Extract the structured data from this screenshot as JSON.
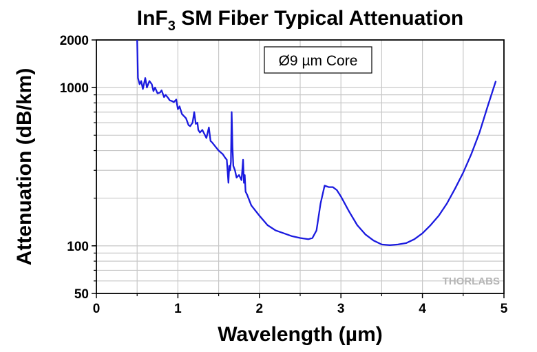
{
  "chart_data": {
    "type": "line",
    "title_main": "InF",
    "title_sub": "3",
    "title_rest": " SM Fiber Typical Attenuation",
    "xlabel": "Wavelength (µm)",
    "ylabel": "Attenuation (dB/km)",
    "xlim": [
      0,
      5
    ],
    "ylim": [
      50,
      2000
    ],
    "y_scale": "log",
    "x_ticks": [
      "0",
      "1",
      "2",
      "3",
      "4",
      "5"
    ],
    "y_ticks": [
      "50",
      "100",
      "1000",
      "2000"
    ],
    "grid": true,
    "annotation": "Ø9 µm Core",
    "watermark": "THORLABS",
    "line_color": "#1a1adf",
    "series": [
      {
        "x": [
          0.5,
          0.51,
          0.53,
          0.55,
          0.57,
          0.6,
          0.62,
          0.65,
          0.68,
          0.7,
          0.72,
          0.75,
          0.78,
          0.8,
          0.83,
          0.85,
          0.88,
          0.9,
          0.93,
          0.95,
          0.98,
          0.99,
          1.0,
          1.02,
          1.05,
          1.1,
          1.13,
          1.15,
          1.18,
          1.2,
          1.22,
          1.24,
          1.25,
          1.27,
          1.3,
          1.35,
          1.38,
          1.4,
          1.42,
          1.45,
          1.5,
          1.55,
          1.58,
          1.6,
          1.62,
          1.63,
          1.64,
          1.65,
          1.66,
          1.67,
          1.68,
          1.7,
          1.72,
          1.75,
          1.78,
          1.8,
          1.81,
          1.82,
          1.83,
          1.85,
          1.9,
          2.0,
          2.1,
          2.2,
          2.3,
          2.4,
          2.5,
          2.6,
          2.65,
          2.7,
          2.75,
          2.8,
          2.85,
          2.9,
          2.95,
          3.0,
          3.1,
          3.2,
          3.3,
          3.4,
          3.5,
          3.6,
          3.7,
          3.8,
          3.9,
          4.0,
          4.1,
          4.2,
          4.3,
          4.4,
          4.5,
          4.6,
          4.7,
          4.8,
          4.9
        ],
        "y": [
          2000,
          1150,
          1050,
          1100,
          980,
          1150,
          1000,
          1100,
          1050,
          950,
          1000,
          920,
          930,
          960,
          870,
          900,
          860,
          830,
          820,
          810,
          840,
          780,
          730,
          760,
          680,
          640,
          580,
          570,
          600,
          700,
          590,
          600,
          540,
          520,
          540,
          480,
          560,
          460,
          450,
          430,
          400,
          380,
          360,
          350,
          250,
          320,
          300,
          340,
          700,
          420,
          320,
          300,
          270,
          280,
          260,
          350,
          250,
          280,
          220,
          210,
          180,
          155,
          135,
          125,
          120,
          115,
          112,
          110,
          112,
          125,
          185,
          240,
          235,
          235,
          225,
          205,
          165,
          135,
          118,
          108,
          102,
          101,
          102,
          104,
          110,
          120,
          135,
          155,
          185,
          230,
          290,
          380,
          520,
          760,
          1100
        ]
      }
    ]
  }
}
